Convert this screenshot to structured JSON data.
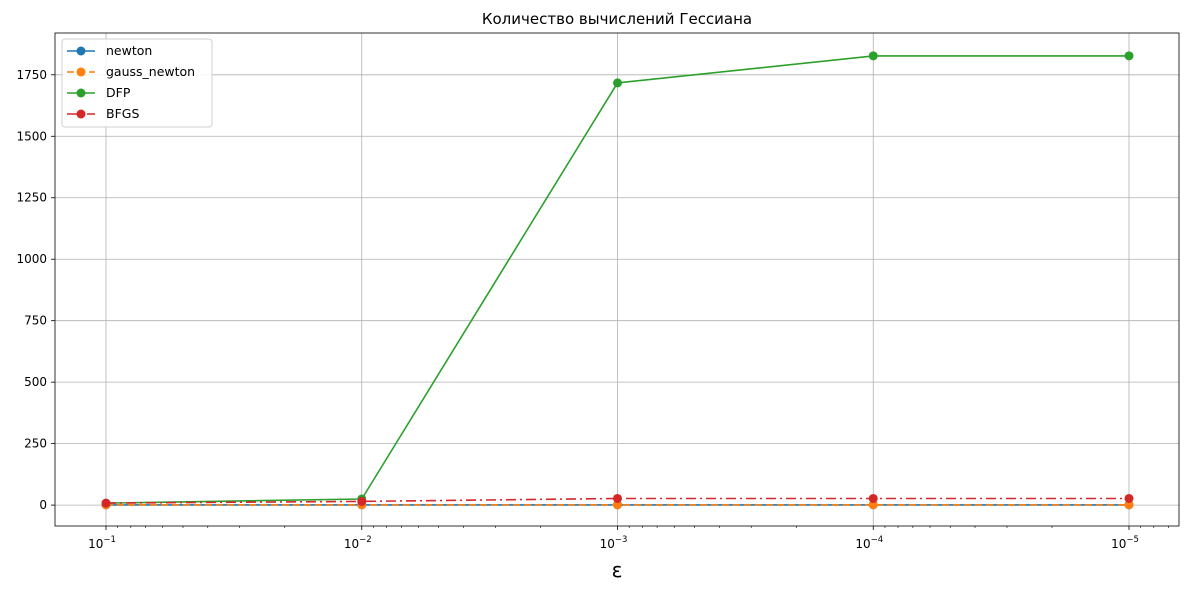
{
  "chart_data": {
    "type": "line",
    "title": "Количество вычислений Гессиана",
    "xlabel": "ε",
    "ylabel": "",
    "x_scale": "log",
    "x_axis_direction": "decreasing (10^-1 on left, 10^-5 on right)",
    "x": [
      0.1,
      0.01,
      0.001,
      0.0001,
      1e-05
    ],
    "x_tick_labels": [
      {
        "base": "10",
        "exp": "−1"
      },
      {
        "base": "10",
        "exp": "−2"
      },
      {
        "base": "10",
        "exp": "−3"
      },
      {
        "base": "10",
        "exp": "−4"
      },
      {
        "base": "10",
        "exp": "−5"
      }
    ],
    "ylim": [
      -85,
      1920
    ],
    "y_ticks": [
      0,
      250,
      500,
      750,
      1000,
      1250,
      1500,
      1750
    ],
    "grid": true,
    "legend_position": "top-left",
    "series": [
      {
        "name": "newton",
        "color": "#1f77b4",
        "linestyle": "solid",
        "marker": "circle",
        "values": [
          1,
          1,
          1,
          1,
          1
        ]
      },
      {
        "name": "gauss_newton",
        "color": "#ff7f0e",
        "linestyle": "dashed",
        "marker": "circle",
        "values": [
          1,
          1,
          1,
          1,
          1
        ]
      },
      {
        "name": "DFP",
        "color": "#2ca02c",
        "linestyle": "solid",
        "marker": "circle",
        "values": [
          8,
          25,
          1717,
          1827,
          1827
        ]
      },
      {
        "name": "BFGS",
        "color": "#d62728",
        "linestyle": "dashdot",
        "marker": "circle",
        "values": [
          8,
          15,
          27,
          27,
          27
        ]
      }
    ]
  }
}
